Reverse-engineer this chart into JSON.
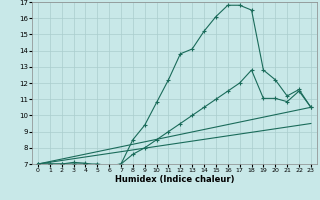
{
  "xlabel": "Humidex (Indice chaleur)",
  "xlim": [
    -0.5,
    23.5
  ],
  "ylim": [
    7,
    17
  ],
  "yticks": [
    7,
    8,
    9,
    10,
    11,
    12,
    13,
    14,
    15,
    16,
    17
  ],
  "xticks": [
    0,
    1,
    2,
    3,
    4,
    5,
    6,
    7,
    8,
    9,
    10,
    11,
    12,
    13,
    14,
    15,
    16,
    17,
    18,
    19,
    20,
    21,
    22,
    23
  ],
  "bg_color": "#c8e8e8",
  "line_color": "#1a6b5a",
  "grid_color": "#aacece",
  "line1_x": [
    0,
    1,
    2,
    3,
    4,
    5,
    6,
    7,
    8,
    9,
    10,
    11,
    12,
    13,
    14,
    15,
    16,
    17,
    18,
    19,
    20,
    21,
    22,
    23
  ],
  "line1_y": [
    7,
    7,
    7,
    7,
    7,
    7,
    6.9,
    7,
    8.5,
    9.4,
    10.8,
    12.2,
    13.8,
    14.1,
    15.2,
    16.1,
    16.8,
    16.8,
    16.5,
    12.8,
    12.2,
    11.2,
    11.6,
    10.5
  ],
  "line2_x": [
    0,
    1,
    2,
    3,
    4,
    5,
    6,
    7,
    8,
    9,
    10,
    11,
    12,
    13,
    14,
    15,
    16,
    17,
    18,
    19,
    20,
    21,
    22,
    23
  ],
  "line2_y": [
    7,
    7,
    7,
    7.1,
    7.05,
    6.9,
    6.85,
    7.0,
    7.6,
    8.0,
    8.5,
    9.0,
    9.5,
    10.0,
    10.5,
    11.0,
    11.5,
    12.0,
    12.8,
    11.05,
    11.05,
    10.85,
    11.5,
    10.5
  ],
  "line3_x": [
    0,
    23
  ],
  "line3_y": [
    7,
    10.5
  ],
  "line4_x": [
    0,
    23
  ],
  "line4_y": [
    7,
    9.5
  ]
}
